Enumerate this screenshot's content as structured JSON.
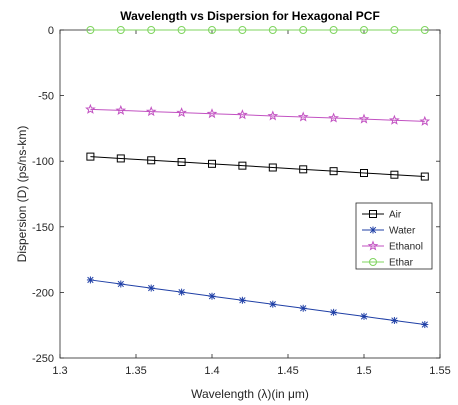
{
  "chart_data": {
    "type": "line",
    "title": "Wavelength vs Dispersion for Hexagonal PCF",
    "xlabel": "Wavelength (λ)(in μm)",
    "ylabel": "Dispersion (D) (ps/ns-km)",
    "xlim": [
      1.3,
      1.55
    ],
    "ylim": [
      -250,
      0
    ],
    "xticks": [
      "1.3",
      "1.35",
      "1.4",
      "1.45",
      "1.5",
      "1.55"
    ],
    "yticks": [
      "0",
      "-50",
      "-100",
      "-150",
      "-200",
      "-250"
    ],
    "xtick_values": [
      1.3,
      1.35,
      1.4,
      1.45,
      1.5,
      1.55
    ],
    "ytick_values": [
      0,
      -50,
      -100,
      -150,
      -200,
      -250
    ],
    "grid": false,
    "legend_position": "right",
    "x": [
      1.32,
      1.34,
      1.36,
      1.38,
      1.4,
      1.42,
      1.44,
      1.46,
      1.48,
      1.5,
      1.52,
      1.54
    ],
    "series": [
      {
        "name": "Air",
        "color": "#000000",
        "marker": "square",
        "values": [
          -96.5,
          -97.9,
          -99.3,
          -100.6,
          -102.0,
          -103.4,
          -104.8,
          -106.2,
          -107.6,
          -109.0,
          -110.3,
          -111.7
        ]
      },
      {
        "name": "Water",
        "color": "#1f3fa6",
        "marker": "asterisk",
        "values": [
          -190.5,
          -193.6,
          -196.7,
          -199.8,
          -202.9,
          -206.0,
          -209.0,
          -212.1,
          -215.2,
          -218.3,
          -221.4,
          -224.5
        ]
      },
      {
        "name": "Ethanol",
        "color": "#c252c2",
        "marker": "star",
        "values": [
          -60.5,
          -61.3,
          -62.2,
          -63.0,
          -63.8,
          -64.6,
          -65.5,
          -66.3,
          -67.1,
          -67.9,
          -68.8,
          -69.6
        ]
      },
      {
        "name": "Ethar",
        "color": "#7fd45f",
        "marker": "circle",
        "values": [
          0,
          0,
          0,
          0,
          0,
          0,
          0,
          0,
          0,
          0,
          0,
          0
        ]
      }
    ]
  }
}
